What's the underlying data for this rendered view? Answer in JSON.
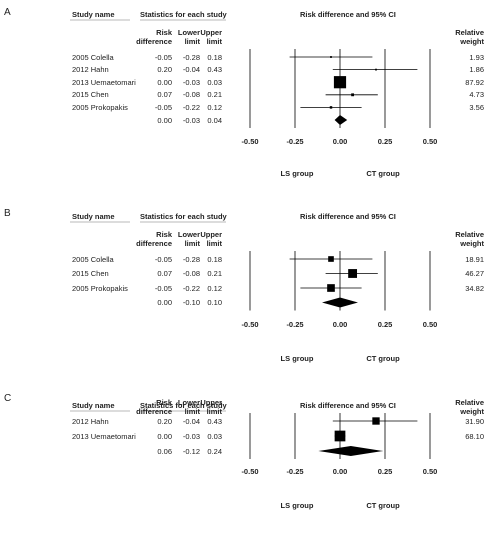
{
  "chart_data": [
    {
      "type": "forest",
      "panel_label": "A",
      "study_header": "Study name",
      "stats_header": "Statistics for each study",
      "plot_header": "Risk difference and 95% CI",
      "categories": [
        "2005 Colella",
        "2012 Hahn",
        "2013 Uemaetomari",
        "2015 Chen",
        "2005 Prokopakis",
        null
      ],
      "series": [
        {
          "name": "Risk difference",
          "values": [
            -0.05,
            0.2,
            0,
            0.07,
            -0.05,
            0
          ],
          "value_labels": [
            "-0.05",
            "0.20",
            "0.00",
            "0.07",
            "-0.05",
            "0.00"
          ]
        },
        {
          "name": "Lower limit",
          "values": [
            -0.28,
            -0.04,
            -0.03,
            -0.08,
            -0.22,
            -0.03
          ],
          "value_labels": [
            "-0.28",
            "-0.04",
            "-0.03",
            "-0.08",
            "-0.22",
            "-0.03"
          ]
        },
        {
          "name": "Upper limit",
          "values": [
            0.18,
            0.43,
            0.03,
            0.21,
            0.12,
            0.04
          ],
          "value_labels": [
            "0.18",
            "0.43",
            "0.03",
            "0.21",
            "0.12",
            "0.04"
          ]
        },
        {
          "name": "Relative weight",
          "values": [
            1.93,
            1.86,
            87.92,
            4.73,
            3.56,
            null
          ],
          "value_labels": [
            "1.93",
            "1.86",
            "87.92",
            "4.73",
            "3.56",
            null
          ]
        }
      ],
      "xlim": [
        -0.5,
        0.5
      ],
      "xticks": [
        {
          "value": -0.5,
          "label": "-0.50"
        },
        {
          "value": -0.25,
          "label": "-0.25"
        },
        {
          "value": 0,
          "label": "0.00"
        },
        {
          "value": 0.25,
          "label": "0.25"
        },
        {
          "value": 0.5,
          "label": "0.50"
        }
      ],
      "xlabel_left": "LS group",
      "xlabel_right": "CT group"
    },
    {
      "type": "forest",
      "panel_label": "B",
      "study_header": "Study name",
      "stats_header": "Statistics for each study",
      "plot_header": "Risk difference and 95% CI",
      "categories": [
        "2005 Colella",
        "2015 Chen",
        "2005 Prokopakis",
        null
      ],
      "series": [
        {
          "name": "Risk difference",
          "values": [
            -0.05,
            0.07,
            -0.05,
            0
          ],
          "value_labels": [
            "-0.05",
            "0.07",
            "-0.05",
            "0.00"
          ]
        },
        {
          "name": "Lower limit",
          "values": [
            -0.28,
            -0.08,
            -0.22,
            -0.1
          ],
          "value_labels": [
            "-0.28",
            "-0.08",
            "-0.22",
            "-0.10"
          ]
        },
        {
          "name": "Upper limit",
          "values": [
            0.18,
            0.21,
            0.12,
            0.1
          ],
          "value_labels": [
            "0.18",
            "0.21",
            "0.12",
            "0.10"
          ]
        },
        {
          "name": "Relative weight",
          "values": [
            18.91,
            46.27,
            34.82,
            null
          ],
          "value_labels": [
            "18.91",
            "46.27",
            "34.82",
            null
          ]
        }
      ],
      "xlim": [
        -0.5,
        0.5
      ],
      "xticks": [
        {
          "value": -0.5,
          "label": "-0.50"
        },
        {
          "value": -0.25,
          "label": "-0.25"
        },
        {
          "value": 0,
          "label": "0.00"
        },
        {
          "value": 0.25,
          "label": "0.25"
        },
        {
          "value": 0.5,
          "label": "0.50"
        }
      ],
      "xlabel_left": "LS group",
      "xlabel_right": "CT group"
    },
    {
      "type": "forest",
      "panel_label": "C",
      "study_header": "Study name",
      "stats_header": "Statistics for each study",
      "plot_header": "Risk difference and 95% CI",
      "categories": [
        "2012 Hahn",
        "2013 Uemaetomari",
        null
      ],
      "series": [
        {
          "name": "Risk difference",
          "values": [
            0.2,
            0,
            0.06
          ],
          "value_labels": [
            "0.20",
            "0.00",
            "0.06"
          ]
        },
        {
          "name": "Lower limit",
          "values": [
            -0.04,
            -0.03,
            -0.12
          ],
          "value_labels": [
            "-0.04",
            "-0.03",
            "-0.12"
          ]
        },
        {
          "name": "Upper limit",
          "values": [
            0.43,
            0.03,
            0.24
          ],
          "value_labels": [
            "0.43",
            "0.03",
            "0.24"
          ]
        },
        {
          "name": "Relative weight",
          "values": [
            31.9,
            68.1,
            null
          ],
          "value_labels": [
            "31.90",
            "68.10",
            null
          ]
        }
      ],
      "xlim": [
        -0.5,
        0.5
      ],
      "xticks": [
        {
          "value": -0.5,
          "label": "-0.50"
        },
        {
          "value": -0.25,
          "label": "-0.25"
        },
        {
          "value": 0,
          "label": "0.00"
        },
        {
          "value": 0.25,
          "label": "0.25"
        },
        {
          "value": 0.5,
          "label": "0.50"
        }
      ],
      "xlabel_left": "LS group",
      "xlabel_right": "CT group"
    }
  ]
}
